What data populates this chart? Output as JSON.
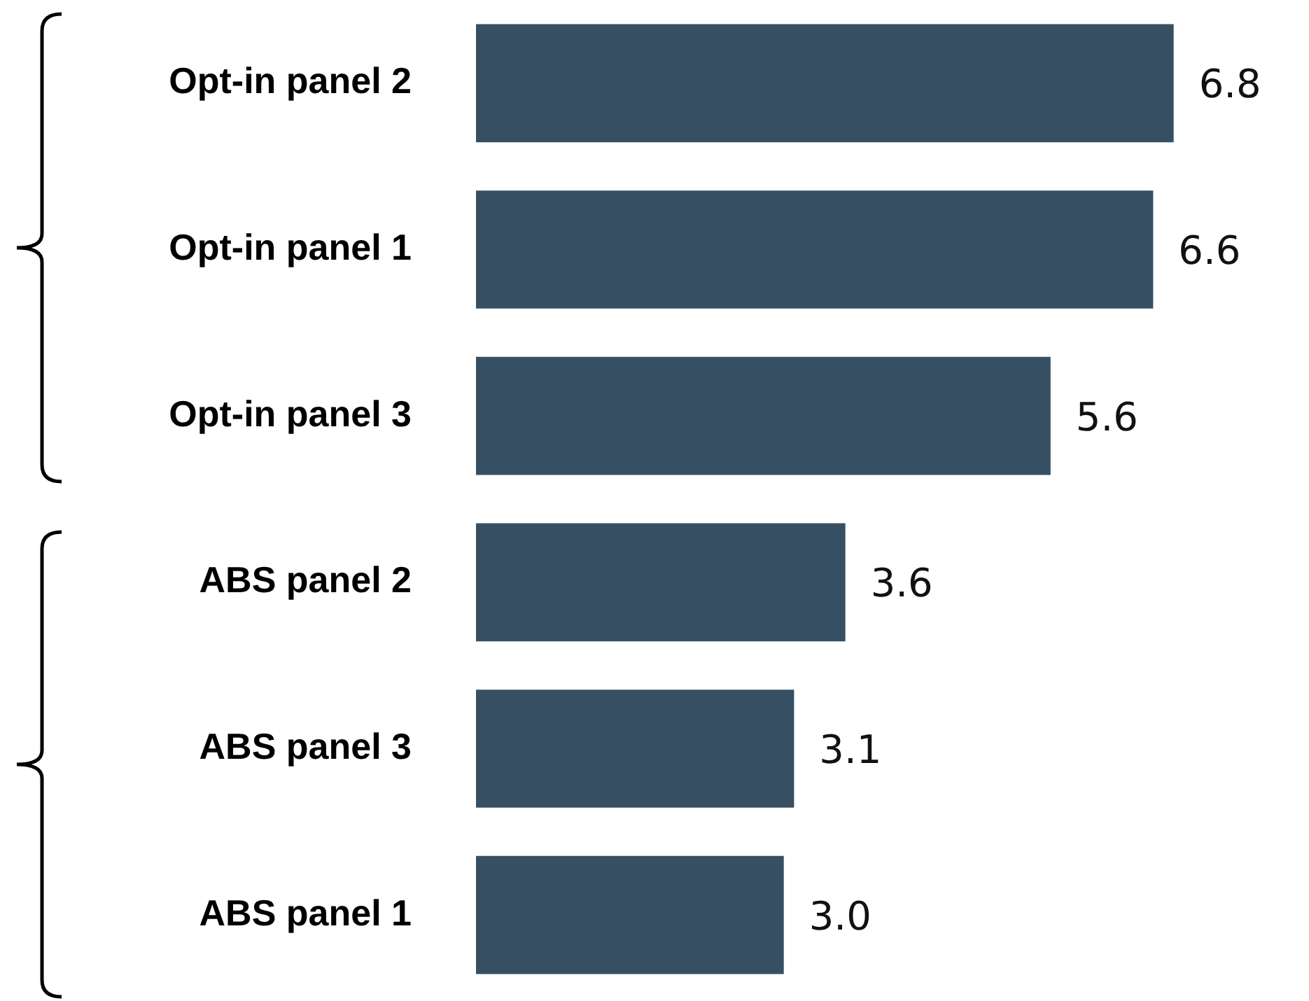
{
  "chart_data": {
    "type": "bar",
    "orientation": "horizontal",
    "tick_labels": "y",
    "categories": [
      "Opt-in panel 2",
      "Opt-in panel 1",
      "Opt-in panel 3",
      "ABS panel 2",
      "ABS panel 3",
      "ABS panel 1"
    ],
    "values": [
      6.8,
      6.6,
      5.6,
      3.6,
      3.1,
      3.0
    ],
    "value_labels": [
      "6.8",
      "6.6",
      "5.6",
      "3.6",
      "3.1",
      "3.0"
    ],
    "color": "#364f63",
    "legend": false
  }
}
